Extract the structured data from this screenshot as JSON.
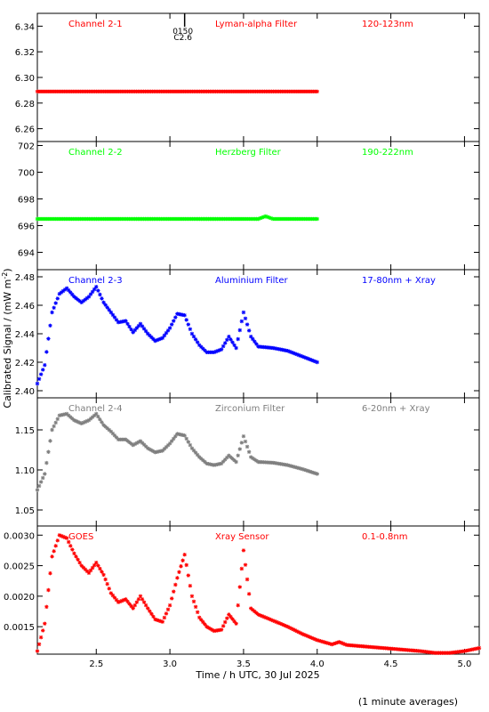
{
  "ylabel": "Calibrated Signal / (mW m",
  "ylabel_sup": "-2",
  "ylabel_end": ")",
  "xlabel": "Time / h UTC, 30 Jul 2025",
  "footnote": "(1 minute averages)",
  "x_range": [
    2.1,
    5.1
  ],
  "x_ticks": [
    "2.5",
    "3.0",
    "3.5",
    "4.0",
    "4.5",
    "5.0"
  ],
  "x_tick_values": [
    2.5,
    3.0,
    3.5,
    4.0,
    4.5,
    5.0
  ],
  "event_marker": {
    "x": 3.1,
    "label1": "0150",
    "label2": "C2.6"
  },
  "chart_data": [
    {
      "type": "scatter",
      "name": "Channel 2-1",
      "filter": "Lyman-alpha Filter",
      "band": "120-123nm",
      "color": "#ff0000",
      "ylim": [
        6.25,
        6.35
      ],
      "y_ticks": [
        6.26,
        6.28,
        6.3,
        6.32,
        6.34
      ],
      "y_tick_labels": [
        "6.26",
        "6.28",
        "6.30",
        "6.32",
        "6.34"
      ],
      "x": [
        2.1,
        2.5,
        3.0,
        3.5,
        4.0
      ],
      "y": [
        6.289,
        6.289,
        6.289,
        6.289,
        6.289
      ]
    },
    {
      "type": "scatter",
      "name": "Channel 2-2",
      "filter": "Herzberg Filter",
      "band": "190-222nm",
      "color": "#00ff00",
      "ylim": [
        692.7,
        702.3
      ],
      "y_ticks": [
        694,
        696,
        698,
        700,
        702
      ],
      "y_tick_labels": [
        "694",
        "696",
        "698",
        "700",
        "702"
      ],
      "x": [
        2.1,
        2.5,
        3.0,
        3.5,
        3.6,
        3.65,
        3.7,
        4.0
      ],
      "y": [
        696.5,
        696.5,
        696.5,
        696.5,
        696.5,
        696.7,
        696.5,
        696.5
      ]
    },
    {
      "type": "scatter",
      "name": "Channel 2-3",
      "filter": "Aluminium Filter",
      "band": "17-80nm + Xray",
      "color": "#0000ff",
      "ylim": [
        2.395,
        2.485
      ],
      "y_ticks": [
        2.4,
        2.42,
        2.44,
        2.46,
        2.48
      ],
      "y_tick_labels": [
        "2.40",
        "2.42",
        "2.44",
        "2.46",
        "2.48"
      ],
      "x": [
        2.1,
        2.15,
        2.2,
        2.25,
        2.3,
        2.35,
        2.4,
        2.45,
        2.5,
        2.55,
        2.6,
        2.65,
        2.7,
        2.75,
        2.8,
        2.85,
        2.9,
        2.95,
        3.0,
        3.05,
        3.1,
        3.15,
        3.2,
        3.25,
        3.3,
        3.35,
        3.4,
        3.45,
        3.5,
        3.55,
        3.6,
        3.7,
        3.8,
        3.9,
        4.0
      ],
      "y": [
        2.405,
        2.418,
        2.455,
        2.468,
        2.472,
        2.466,
        2.462,
        2.466,
        2.473,
        2.462,
        2.455,
        2.448,
        2.449,
        2.441,
        2.447,
        2.44,
        2.435,
        2.437,
        2.444,
        2.454,
        2.453,
        2.44,
        2.432,
        2.427,
        2.427,
        2.429,
        2.438,
        2.43,
        2.455,
        2.438,
        2.431,
        2.43,
        2.428,
        2.424,
        2.42
      ]
    },
    {
      "type": "scatter",
      "name": "Channel 2-4",
      "filter": "Zirconium Filter",
      "band": "6-20nm + Xray",
      "color": "#7f7f7f",
      "ylim": [
        1.03,
        1.19
      ],
      "y_ticks": [
        1.05,
        1.1,
        1.15
      ],
      "y_tick_labels": [
        "1.05",
        "1.10",
        "1.15"
      ],
      "x": [
        2.1,
        2.15,
        2.2,
        2.25,
        2.3,
        2.35,
        2.4,
        2.45,
        2.5,
        2.55,
        2.6,
        2.65,
        2.7,
        2.75,
        2.8,
        2.85,
        2.9,
        2.95,
        3.0,
        3.05,
        3.1,
        3.15,
        3.2,
        3.25,
        3.3,
        3.35,
        3.4,
        3.45,
        3.5,
        3.55,
        3.6,
        3.7,
        3.8,
        3.9,
        4.0
      ],
      "y": [
        1.075,
        1.095,
        1.15,
        1.168,
        1.17,
        1.162,
        1.158,
        1.162,
        1.17,
        1.156,
        1.148,
        1.138,
        1.138,
        1.131,
        1.136,
        1.127,
        1.122,
        1.124,
        1.133,
        1.145,
        1.143,
        1.127,
        1.116,
        1.108,
        1.106,
        1.108,
        1.118,
        1.11,
        1.142,
        1.116,
        1.11,
        1.109,
        1.106,
        1.101,
        1.095
      ]
    },
    {
      "type": "scatter",
      "name": "GOES",
      "filter": "Xray Sensor",
      "band": "0.1-0.8nm",
      "color": "#ff0000",
      "ylim": [
        0.00105,
        0.00315
      ],
      "y_ticks": [
        0.0015,
        0.002,
        0.0025,
        0.003
      ],
      "y_tick_labels": [
        "0.0015",
        "0.0020",
        "0.0025",
        "0.0030"
      ],
      "x": [
        2.1,
        2.15,
        2.2,
        2.25,
        2.3,
        2.35,
        2.4,
        2.45,
        2.5,
        2.55,
        2.6,
        2.65,
        2.7,
        2.75,
        2.8,
        2.85,
        2.9,
        2.95,
        3.0,
        3.05,
        3.1,
        3.15,
        3.2,
        3.25,
        3.3,
        3.35,
        3.4,
        3.45,
        3.5,
        3.55,
        3.6,
        3.7,
        3.8,
        3.9,
        4.0,
        4.1,
        4.15,
        4.2,
        4.3,
        4.4,
        4.5,
        4.6,
        4.7,
        4.8,
        4.9,
        5.0,
        5.1
      ],
      "y": [
        0.0011,
        0.00155,
        0.00265,
        0.003,
        0.00295,
        0.0027,
        0.0025,
        0.00238,
        0.00255,
        0.00235,
        0.00205,
        0.0019,
        0.00195,
        0.0018,
        0.002,
        0.0018,
        0.00162,
        0.00158,
        0.00185,
        0.0023,
        0.00268,
        0.002,
        0.00165,
        0.0015,
        0.00143,
        0.00145,
        0.0017,
        0.00155,
        0.00275,
        0.0018,
        0.0017,
        0.0016,
        0.0015,
        0.00138,
        0.00128,
        0.00121,
        0.00125,
        0.0012,
        0.00118,
        0.00116,
        0.00114,
        0.00112,
        0.0011,
        0.00107,
        0.00107,
        0.0011,
        0.00115
      ]
    }
  ]
}
